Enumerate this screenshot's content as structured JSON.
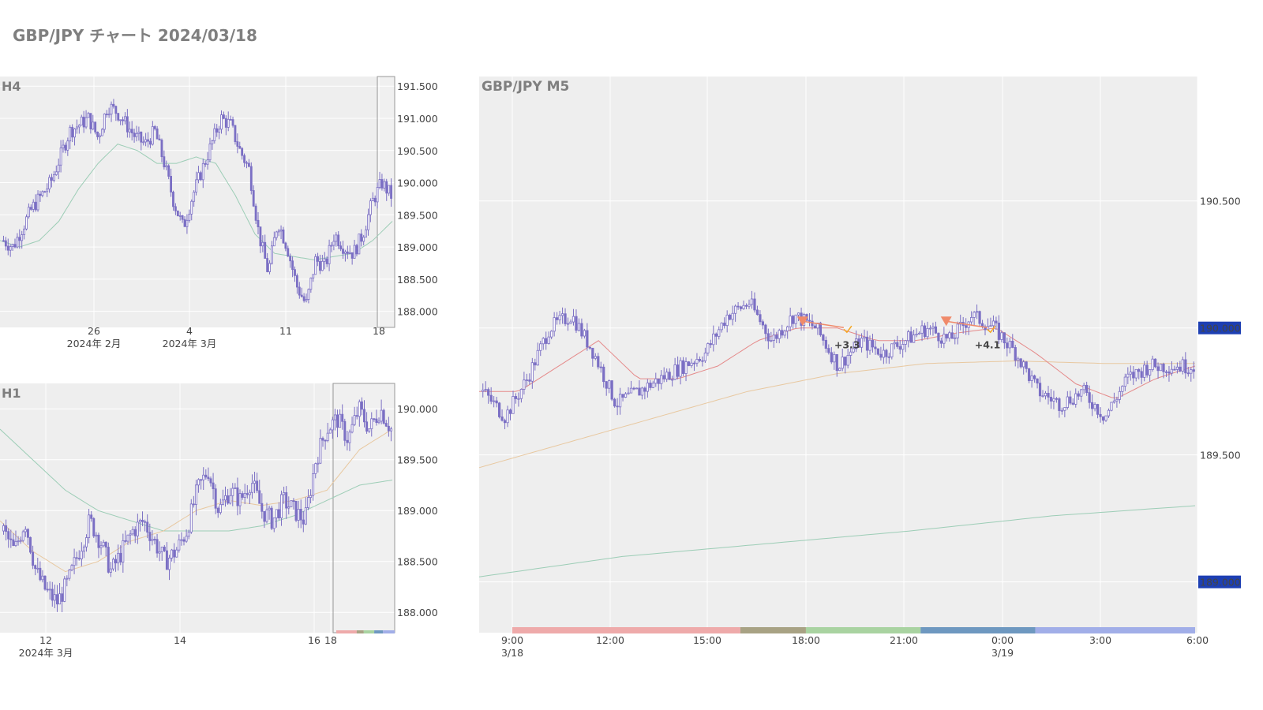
{
  "page_title": "GBP/JPY チャート 2024/03/18",
  "colors": {
    "background": "#ffffff",
    "plot_bg": "#eeeeee",
    "grid": "#ffffff",
    "candle": "#7b6fc4",
    "ma_short": "#e58a8a",
    "ma_mid": "#e8c8a0",
    "ma_long": "#9ccdb6",
    "price_badge": "#1d3fb3",
    "trade_marker": "#f08a6a",
    "profit_label": "#f5a623",
    "sessions": [
      "#eeaaaa",
      "#a8a284",
      "#a9d3a1",
      "#6e98c0",
      "#a1aee8"
    ]
  },
  "chart_data": [
    {
      "name": "H4",
      "type": "candlestick",
      "panel_label": "H4",
      "y_ticks": [
        "191.500",
        "191.000",
        "190.500",
        "190.000",
        "189.500",
        "189.000",
        "188.500",
        "188.000"
      ],
      "ylim": [
        187.75,
        191.65
      ],
      "x_ticks": [
        {
          "label": "26",
          "sub": "2024年 2月"
        },
        {
          "label": "4",
          "sub": "2024年 3月"
        },
        {
          "label": "11",
          "sub": ""
        },
        {
          "label": "18",
          "sub": ""
        }
      ],
      "approx_path": [
        189.1,
        189.0,
        189.3,
        189.6,
        189.8,
        190.0,
        190.4,
        190.8,
        190.9,
        191.0,
        190.7,
        191.2,
        191.1,
        190.9,
        190.7,
        190.6,
        190.8,
        190.3,
        189.7,
        189.3,
        189.8,
        190.2,
        190.6,
        191.0,
        190.9,
        190.5,
        190.2,
        189.2,
        188.6,
        189.4,
        189.0,
        188.4,
        188.1,
        188.8,
        188.7,
        189.2,
        189.0,
        188.9,
        189.2,
        189.7,
        190.0,
        189.8
      ],
      "ma_path": [
        189.1,
        189.0,
        189.1,
        189.4,
        189.9,
        190.3,
        190.6,
        190.5,
        190.3,
        190.3,
        190.4,
        190.3,
        189.8,
        189.2,
        188.9,
        188.85,
        188.8,
        188.85,
        188.9,
        189.1,
        189.4
      ]
    },
    {
      "name": "H1",
      "type": "candlestick",
      "panel_label": "H1",
      "y_ticks": [
        "190.000",
        "189.500",
        "189.000",
        "188.500",
        "188.000"
      ],
      "ylim": [
        187.8,
        190.25
      ],
      "x_ticks": [
        {
          "label": "12",
          "sub": "2024年 3月"
        },
        {
          "label": "14",
          "sub": ""
        },
        {
          "label": "16",
          "sub": ""
        },
        {
          "label": "18",
          "sub": ""
        }
      ],
      "approx_path": [
        188.8,
        188.6,
        188.9,
        188.4,
        188.2,
        188.1,
        188.3,
        188.6,
        188.9,
        188.7,
        188.4,
        188.6,
        188.8,
        188.9,
        188.7,
        188.5,
        188.6,
        188.8,
        189.2,
        189.4,
        189.0,
        189.2,
        189.1,
        189.3,
        189.0,
        188.9,
        189.1,
        189.0,
        188.9,
        189.5,
        189.8,
        189.9,
        189.7,
        190.0,
        189.8,
        190.0,
        189.8
      ],
      "ma_short_path": [
        188.9,
        188.6,
        188.4,
        188.5,
        188.7,
        188.8,
        189.0,
        189.1,
        189.05,
        189.1,
        189.2,
        189.6,
        189.8
      ],
      "ma_long_path": [
        189.8,
        189.5,
        189.2,
        189.0,
        188.9,
        188.8,
        188.8,
        188.8,
        188.85,
        188.95,
        189.1,
        189.25,
        189.3
      ]
    },
    {
      "name": "M5",
      "type": "candlestick",
      "panel_label": "GBP/JPY M5",
      "y_ticks": [
        "190.500",
        "189.500"
      ],
      "ylim": [
        188.8,
        190.99
      ],
      "badges": [
        "190.000",
        "189.000"
      ],
      "x_ticks": [
        {
          "label": "9:00",
          "sub": "3/18"
        },
        {
          "label": "12:00",
          "sub": ""
        },
        {
          "label": "15:00",
          "sub": ""
        },
        {
          "label": "18:00",
          "sub": ""
        },
        {
          "label": "21:00",
          "sub": ""
        },
        {
          "label": "0:00",
          "sub": "3/19"
        },
        {
          "label": "3:00",
          "sub": ""
        },
        {
          "label": "6:00",
          "sub": ""
        }
      ],
      "approx_path": [
        189.75,
        189.65,
        189.8,
        190.0,
        190.05,
        189.9,
        189.7,
        189.75,
        189.8,
        189.85,
        189.9,
        190.05,
        190.1,
        189.95,
        190.05,
        190.0,
        189.85,
        189.95,
        189.9,
        189.95,
        190.0,
        189.95,
        190.05,
        190.0,
        189.9,
        189.75,
        189.7,
        189.75,
        189.65,
        189.8,
        189.85,
        189.85,
        189.85
      ],
      "ma_short_path": [
        189.75,
        189.75,
        189.85,
        189.95,
        189.8,
        189.8,
        189.85,
        189.95,
        190.0,
        190.0,
        189.95,
        189.95,
        189.98,
        190.0,
        189.9,
        189.78,
        189.72,
        189.8,
        189.85
      ],
      "ma_mid_path": [
        189.45,
        189.55,
        189.65,
        189.75,
        189.82,
        189.86,
        189.87,
        189.86,
        189.86
      ],
      "ma_long_path": [
        189.02,
        189.1,
        189.15,
        189.2,
        189.26,
        189.3
      ],
      "trades": [
        {
          "hour": 17.9,
          "label": "+3.3"
        },
        {
          "hour": 22.3,
          "label": "+4.1"
        }
      ]
    }
  ]
}
